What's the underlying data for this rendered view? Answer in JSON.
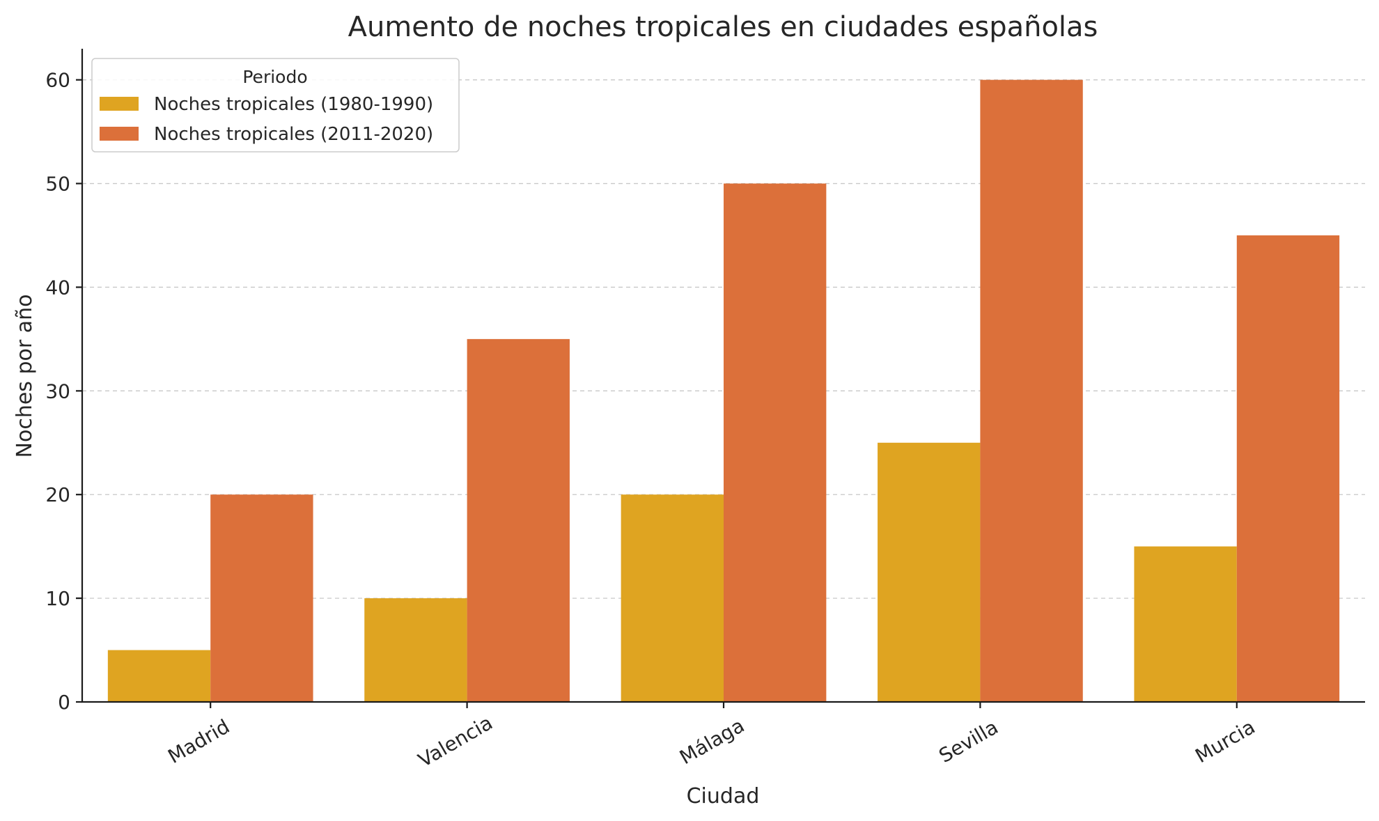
{
  "chart_data": {
    "type": "bar",
    "title": "Aumento de noches tropicales en ciudades españolas",
    "xlabel": "Ciudad",
    "ylabel": "Noches por año",
    "categories": [
      "Madrid",
      "Valencia",
      "Málaga",
      "Sevilla",
      "Murcia"
    ],
    "series": [
      {
        "name": "Noches tropicales (1980-1990)",
        "color": "#DFA421",
        "values": [
          5,
          10,
          20,
          25,
          15
        ]
      },
      {
        "name": "Noches tropicales (2011-2020)",
        "color": "#DC703A",
        "values": [
          20,
          35,
          50,
          60,
          45
        ]
      }
    ],
    "ylim": [
      0,
      63
    ],
    "yticks": [
      "0",
      "10",
      "20",
      "30",
      "40",
      "50",
      "60"
    ],
    "grid": "y-dashed",
    "legend": {
      "title": "Periodo",
      "placement": "top-left"
    }
  }
}
